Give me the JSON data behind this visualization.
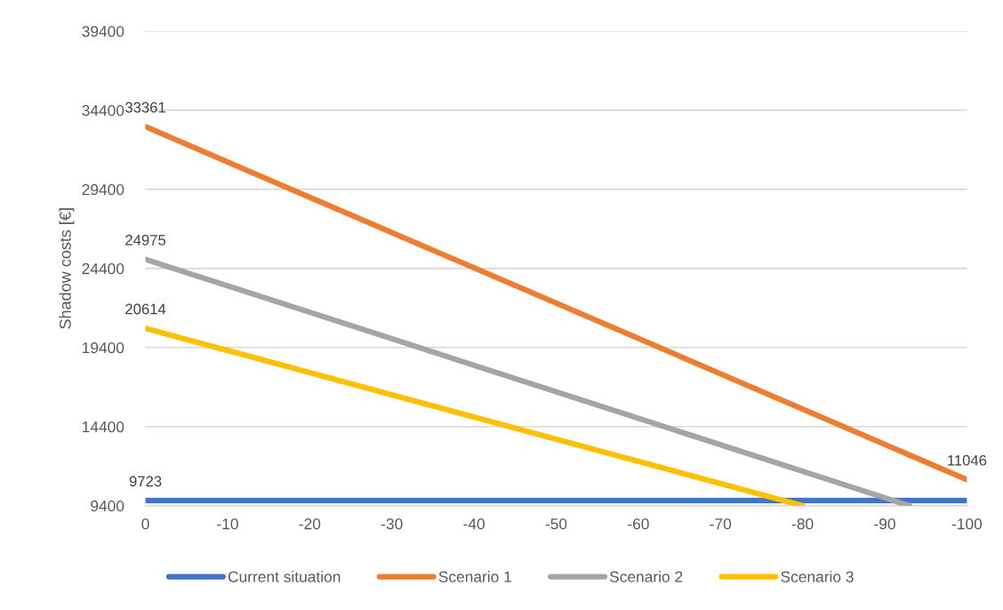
{
  "chart_data": {
    "type": "line",
    "ylabel": "Shadow costs [€]",
    "xlim": [
      0,
      -100
    ],
    "xticks": [
      0,
      -10,
      -20,
      -30,
      -40,
      -50,
      -60,
      -70,
      -80,
      -90,
      -100
    ],
    "ylim": [
      9400,
      39400
    ],
    "yticks": [
      9400,
      14400,
      19400,
      24400,
      29400,
      34400,
      39400
    ],
    "grid": "y",
    "legend": "bottom",
    "line_style": "solid",
    "series": [
      {
        "name": "Current situation",
        "color": "#4472c4",
        "x": [
          0,
          -100
        ],
        "values": [
          9723,
          9723
        ],
        "value_labels": [
          "9723",
          null
        ]
      },
      {
        "name": "Scenario 1",
        "color": "#ed7d31",
        "x": [
          0,
          -100
        ],
        "values": [
          33361,
          11046
        ],
        "value_labels": [
          "33361",
          "11046"
        ]
      },
      {
        "name": "Scenario 2",
        "color": "#a5a5a5",
        "x": [
          0,
          -93
        ],
        "values": [
          24975,
          9400
        ],
        "value_labels": [
          "24975",
          null
        ]
      },
      {
        "name": "Scenario 3",
        "color": "#ffc000",
        "x": [
          0,
          -80
        ],
        "values": [
          20614,
          9400
        ],
        "value_labels": [
          "20614",
          null
        ]
      }
    ]
  }
}
